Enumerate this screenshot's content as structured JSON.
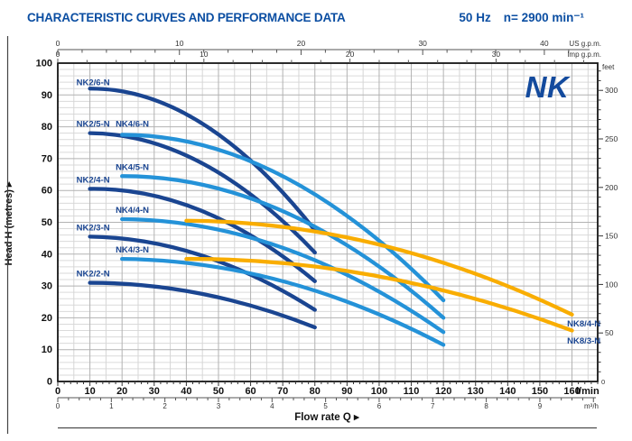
{
  "header": {
    "title": "CHARACTERISTIC CURVES AND PERFORMANCE DATA",
    "frequency": "50 Hz",
    "speed": "n= 2900 min⁻¹"
  },
  "logo_text": "NK",
  "chart_data": {
    "type": "line",
    "title": "",
    "xlabel": "Flow rate Q  ▸",
    "ylabel": "Head H  (metres)  ▸",
    "grid": true,
    "colors": {
      "navy": "#1a4591",
      "lightblue": "#2492d8",
      "orange": "#f9ad00",
      "label": "#1a4591",
      "logo_blue": "#134a9d",
      "header_blue": "#0b4ea2"
    },
    "axes": {
      "y_metres": {
        "unit": "metres",
        "min": 0,
        "max": 100,
        "tick_labels": [
          0,
          10,
          20,
          30,
          40,
          50,
          60,
          70,
          80,
          90,
          100
        ]
      },
      "y_feet": {
        "unit": "feet",
        "m_per_unit": 0.3048,
        "tick_labels": [
          50,
          100,
          150,
          200,
          250,
          300
        ],
        "zero_label": "0"
      },
      "x_lmin": {
        "unit": "l/min",
        "min": 0,
        "max": 168,
        "tick_labels": [
          0,
          10,
          20,
          30,
          40,
          50,
          60,
          70,
          80,
          90,
          100,
          110,
          120,
          130,
          140,
          150,
          160
        ]
      },
      "x_m3h": {
        "unit": "m³/h",
        "lmin_per_unit": 16.667,
        "tick_labels": [
          0,
          1,
          2,
          3,
          4,
          5,
          6,
          7,
          8,
          9
        ]
      },
      "x_usgpm": {
        "unit": "US g.p.m.",
        "lmin_per_unit": 3.785,
        "tick_labels": [
          0,
          10,
          20,
          30,
          40
        ]
      },
      "x_impgpm": {
        "unit": "Imp g.p.m.",
        "lmin_per_unit": 4.546,
        "tick_labels": [
          0,
          10,
          20,
          30
        ]
      }
    },
    "series": [
      {
        "name": "NK2/6-N",
        "color": "navy",
        "points": [
          [
            10,
            92
          ],
          [
            45,
            81
          ],
          [
            80,
            47.5
          ]
        ],
        "label_at": [
          5.8,
          93
        ]
      },
      {
        "name": "NK2/5-N",
        "color": "navy",
        "points": [
          [
            10,
            78
          ],
          [
            45,
            68.5
          ],
          [
            80,
            40.5
          ]
        ],
        "label_at": [
          5.8,
          80
        ]
      },
      {
        "name": "NK2/4-N",
        "color": "navy",
        "points": [
          [
            10,
            60.5
          ],
          [
            45,
            53.5
          ],
          [
            80,
            31.5
          ]
        ],
        "label_at": [
          5.8,
          62.5
        ]
      },
      {
        "name": "NK2/3-N",
        "color": "navy",
        "points": [
          [
            10,
            45.5
          ],
          [
            45,
            39.5
          ],
          [
            80,
            22.5
          ]
        ],
        "label_at": [
          5.8,
          47.5
        ]
      },
      {
        "name": "NK2/2-N",
        "color": "navy",
        "points": [
          [
            10,
            31
          ],
          [
            45,
            27.5
          ],
          [
            80,
            17
          ]
        ],
        "label_at": [
          5.8,
          33
        ]
      },
      {
        "name": "NK4/6-N",
        "color": "lightblue",
        "points": [
          [
            20,
            77.5
          ],
          [
            70,
            64.5
          ],
          [
            120,
            25.5
          ]
        ],
        "label_at": [
          18,
          80
        ]
      },
      {
        "name": "NK4/5-N",
        "color": "lightblue",
        "points": [
          [
            20,
            64.5
          ],
          [
            70,
            53.5
          ],
          [
            120,
            20
          ]
        ],
        "label_at": [
          18,
          66.5
        ]
      },
      {
        "name": "NK4/4-N",
        "color": "lightblue",
        "points": [
          [
            20,
            51
          ],
          [
            70,
            42
          ],
          [
            120,
            15.5
          ]
        ],
        "label_at": [
          18,
          53
        ]
      },
      {
        "name": "NK4/3-N",
        "color": "lightblue",
        "points": [
          [
            20,
            38.5
          ],
          [
            70,
            31.5
          ],
          [
            120,
            11.5
          ]
        ],
        "label_at": [
          18,
          40.5
        ]
      },
      {
        "name": "NK8/4-N",
        "color": "orange",
        "points": [
          [
            40,
            50.5
          ],
          [
            100,
            43
          ],
          [
            160,
            21
          ]
        ],
        "label_at": [
          158.5,
          17.3
        ]
      },
      {
        "name": "NK8/3-N",
        "color": "orange",
        "points": [
          [
            40,
            38.5
          ],
          [
            100,
            33
          ],
          [
            160,
            16
          ]
        ],
        "label_at": [
          158.5,
          11.9
        ]
      }
    ]
  }
}
